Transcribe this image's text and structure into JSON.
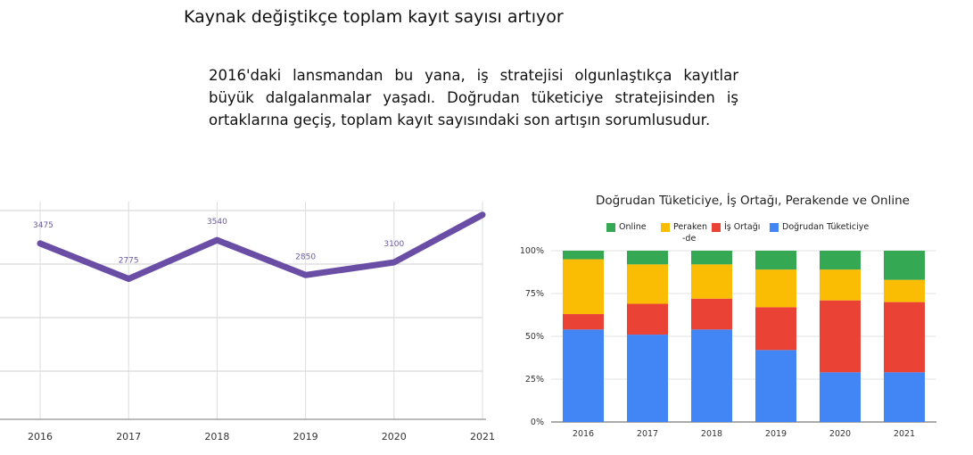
{
  "page": {
    "title": "Kaynak değiştikçe toplam kayıt sayısı artıyor",
    "paragraph": "2016'daki lansmandan bu yana, iş stratejisi olgunlaştıkça kayıtlar büyük dalgalanmalar yaşadı. Doğrudan tüketiciye stratejisinden iş ortaklarına geçiş, toplam kayıt sayısındaki son artışın sorumlusudur."
  },
  "chart_data": [
    {
      "type": "line",
      "title": "",
      "x": [
        "2016",
        "2017",
        "2018",
        "2019",
        "2020",
        "2021"
      ],
      "series": [
        {
          "values": [
            3475,
            2775,
            3540,
            2850,
            3100,
            4040
          ]
        }
      ],
      "data_labels": [
        "3475",
        "2775",
        "3540",
        "2850",
        "3100",
        ""
      ],
      "ylim": [
        0,
        4300
      ],
      "grid": true,
      "color": "#6a4ea6"
    },
    {
      "type": "bar",
      "stacked": "percent",
      "title": "Doğrudan Tüketiciye, İş Ortağı, Perakende ve Online",
      "categories": [
        "2016",
        "2017",
        "2018",
        "2019",
        "2020",
        "2021"
      ],
      "y_ticks": [
        "0%",
        "25%",
        "50%",
        "75%",
        "100%"
      ],
      "ylim": [
        0,
        100
      ],
      "legend_position": "top",
      "legend": [
        {
          "label_lines": [
            "Online"
          ],
          "color": "#34a853"
        },
        {
          "label_lines": [
            "Peraken",
            "-de"
          ],
          "color": "#fbbc04"
        },
        {
          "label_lines": [
            "İş Ortağı"
          ],
          "color": "#ea4335"
        },
        {
          "label_lines": [
            "Doğrudan Tüketiciye"
          ],
          "color": "#4285f4"
        }
      ],
      "series": [
        {
          "name": "Doğrudan Tüketiciye",
          "color": "#4285f4",
          "values": [
            54,
            51,
            54,
            42,
            29,
            29
          ]
        },
        {
          "name": "İş Ortağı",
          "color": "#ea4335",
          "values": [
            9,
            18,
            18,
            25,
            42,
            41
          ]
        },
        {
          "name": "Perakende",
          "color": "#fbbc04",
          "values": [
            32,
            23,
            20,
            22,
            18,
            13
          ]
        },
        {
          "name": "Online",
          "color": "#34a853",
          "values": [
            5,
            8,
            8,
            11,
            11,
            17
          ]
        }
      ]
    }
  ]
}
